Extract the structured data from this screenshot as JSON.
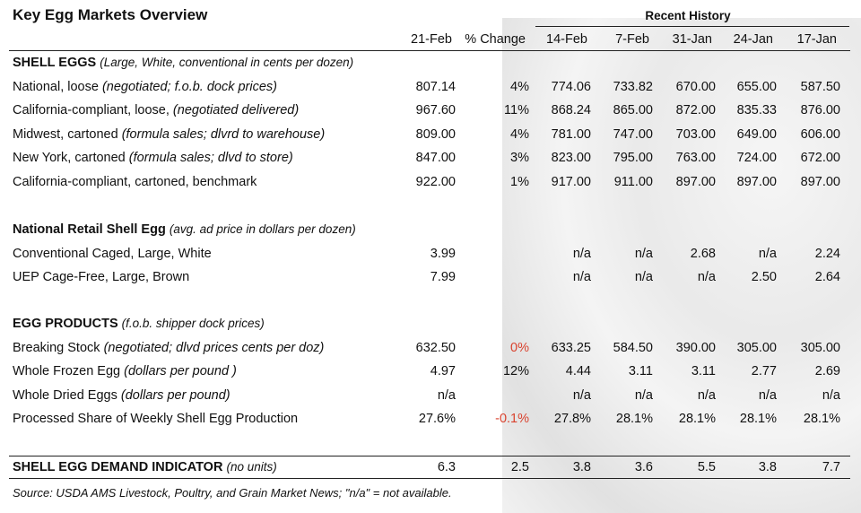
{
  "title": "Key Egg Markets Overview",
  "group_header": "Recent History",
  "columns": [
    "21-Feb",
    "% Change",
    "14-Feb",
    "7-Feb",
    "31-Jan",
    "24-Jan",
    "17-Jan"
  ],
  "highlight_color": "#d9432f",
  "sections": [
    {
      "heading": {
        "label": "SHELL EGGS",
        "note": "(Large, White, conventional in cents per dozen)"
      },
      "rows": [
        {
          "label": "National, loose",
          "note": "(negotiated; f.o.b. dock prices)",
          "cells": [
            "807.14",
            "4%",
            "774.06",
            "733.82",
            "670.00",
            "655.00",
            "587.50"
          ]
        },
        {
          "label": "California-compliant, loose,",
          "note": "(negotiated delivered)",
          "cells": [
            "967.60",
            "11%",
            "868.24",
            "865.00",
            "872.00",
            "835.33",
            "876.00"
          ]
        },
        {
          "label": "Midwest, cartoned",
          "note": "(formula sales; dlvrd to warehouse)",
          "cells": [
            "809.00",
            "4%",
            "781.00",
            "747.00",
            "703.00",
            "649.00",
            "606.00"
          ]
        },
        {
          "label": "New York, cartoned",
          "note": "(formula sales; dlvd to store)",
          "cells": [
            "847.00",
            "3%",
            "823.00",
            "795.00",
            "763.00",
            "724.00",
            "672.00"
          ]
        },
        {
          "label": "California-compliant, cartoned, benchmark",
          "cells": [
            "922.00",
            "1%",
            "917.00",
            "911.00",
            "897.00",
            "897.00",
            "897.00"
          ]
        }
      ]
    },
    {
      "heading": {
        "label": "National Retail Shell Egg",
        "note": "(avg. ad price in dollars per dozen)"
      },
      "rows": [
        {
          "label": "Conventional Caged, Large, White",
          "cells": [
            "3.99",
            null,
            "n/a",
            "n/a",
            "2.68",
            "n/a",
            "2.24"
          ]
        },
        {
          "label": "UEP Cage-Free, Large, Brown",
          "cells": [
            "7.99",
            null,
            "n/a",
            "n/a",
            "n/a",
            "2.50",
            "2.64"
          ]
        }
      ]
    },
    {
      "heading": {
        "label": "EGG PRODUCTS",
        "note": "(f.o.b. shipper dock prices)"
      },
      "rows": [
        {
          "label": "Breaking Stock",
          "note": "(negotiated; dlvd prices cents per doz)",
          "cells": [
            "632.50",
            "0%",
            "633.25",
            "584.50",
            "390.00",
            "305.00",
            "305.00"
          ],
          "highlight_columns": [
            1
          ]
        },
        {
          "label": "Whole Frozen Egg",
          "note": "(dollars per pound )",
          "cells": [
            "4.97",
            "12%",
            "4.44",
            "3.11",
            "3.11",
            "2.77",
            "2.69"
          ]
        },
        {
          "label": "Whole Dried Eggs",
          "note": "(dollars per pound)",
          "cells": [
            "n/a",
            null,
            "n/a",
            "n/a",
            "n/a",
            "n/a",
            "n/a"
          ]
        },
        {
          "label": "Processed Share of Weekly Shell Egg Production",
          "cells": [
            "27.6%",
            "-0.1%",
            "27.8%",
            "28.1%",
            "28.1%",
            "28.1%",
            "28.1%"
          ],
          "highlight_columns": [
            1
          ]
        }
      ]
    },
    {
      "heading": {
        "label": "SHELL EGG DEMAND INDICATOR",
        "note": "(no units)",
        "cells": [
          "6.3",
          "2.5",
          "3.8",
          "3.6",
          "5.5",
          "3.8",
          "7.7"
        ]
      },
      "rows": []
    }
  ],
  "source": "Source: USDA AMS Livestock, Poultry, and Grain Market News; \"n/a\" = not available."
}
